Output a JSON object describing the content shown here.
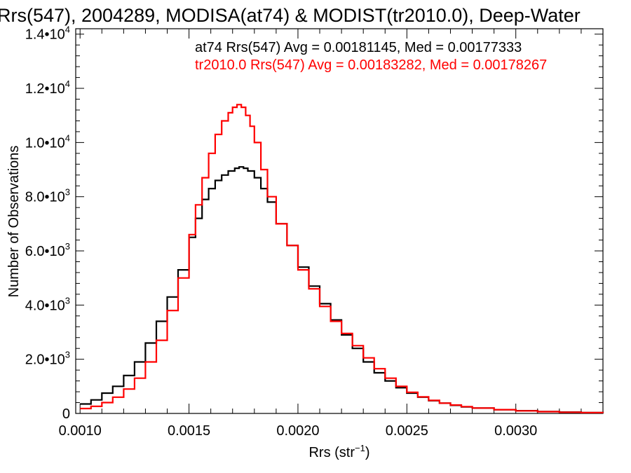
{
  "chart_data": {
    "type": "line",
    "title": "Rrs(547), 2004289, MODISA(at74) & MODIST(tr2010.0), Deep-Water",
    "xlabel": "Rrs (str",
    "xlabel_sup": "−1",
    "xlabel_close": ")",
    "ylabel": "Number of Observations",
    "xlim": [
      0.00098,
      0.0034
    ],
    "ylim": [
      0,
      14200
    ],
    "x_ticks": [
      {
        "value": 0.001,
        "label": "0.0010"
      },
      {
        "value": 0.0015,
        "label": "0.0015"
      },
      {
        "value": 0.002,
        "label": "0.0020"
      },
      {
        "value": 0.0025,
        "label": "0.0025"
      },
      {
        "value": 0.003,
        "label": "0.0030"
      }
    ],
    "y_ticks": [
      {
        "value": 0,
        "mantissa": "0",
        "exp": ""
      },
      {
        "value": 2000,
        "mantissa": "2.0•10",
        "exp": "3"
      },
      {
        "value": 4000,
        "mantissa": "4.0•10",
        "exp": "3"
      },
      {
        "value": 6000,
        "mantissa": "6.0•10",
        "exp": "3"
      },
      {
        "value": 8000,
        "mantissa": "8.0•10",
        "exp": "3"
      },
      {
        "value": 10000,
        "mantissa": "1.0•10",
        "exp": "4"
      },
      {
        "value": 12000,
        "mantissa": "1.2•10",
        "exp": "4"
      },
      {
        "value": 14000,
        "mantissa": "1.4•10",
        "exp": "4"
      }
    ],
    "annotations": [
      {
        "text": "at74 Rrs(547) Avg = 0.00181145, Med = 0.00177333",
        "color": "#000000"
      },
      {
        "text": "tr2010.0 Rrs(547) Avg = 0.00183282, Med = 0.00178267",
        "color": "#ff0000"
      }
    ],
    "series": [
      {
        "color": "#000000",
        "x": [
          0.001,
          0.00105,
          0.0011,
          0.00115,
          0.0012,
          0.00125,
          0.0013,
          0.00135,
          0.0014,
          0.00145,
          0.0015,
          0.00153,
          0.00156,
          0.00159,
          0.00162,
          0.00165,
          0.00168,
          0.00171,
          0.00173,
          0.00175,
          0.00177,
          0.0018,
          0.00183,
          0.00186,
          0.0019,
          0.00195,
          0.002,
          0.00205,
          0.0021,
          0.00215,
          0.0022,
          0.00225,
          0.0023,
          0.00235,
          0.0024,
          0.00245,
          0.0025,
          0.00255,
          0.0026,
          0.00265,
          0.0027,
          0.00275,
          0.0028,
          0.0029,
          0.003,
          0.0031,
          0.0032,
          0.0033,
          0.0034
        ],
        "y": [
          350,
          500,
          750,
          1000,
          1400,
          1900,
          2600,
          3400,
          4300,
          5300,
          6500,
          7200,
          7900,
          8300,
          8600,
          8800,
          8950,
          9050,
          9100,
          9050,
          8950,
          8700,
          8300,
          7800,
          7000,
          6200,
          5400,
          4700,
          4050,
          3450,
          2900,
          2400,
          1900,
          1500,
          1200,
          950,
          750,
          600,
          470,
          380,
          300,
          240,
          200,
          140,
          100,
          70,
          50,
          30,
          20
        ]
      },
      {
        "color": "#ff0000",
        "x": [
          0.001,
          0.00105,
          0.0011,
          0.00115,
          0.0012,
          0.00125,
          0.0013,
          0.00135,
          0.0014,
          0.00145,
          0.0015,
          0.00153,
          0.00156,
          0.00159,
          0.00162,
          0.00165,
          0.00168,
          0.0017,
          0.00172,
          0.00174,
          0.00176,
          0.00178,
          0.0018,
          0.00183,
          0.00186,
          0.0019,
          0.00195,
          0.002,
          0.00205,
          0.0021,
          0.00215,
          0.0022,
          0.00225,
          0.0023,
          0.00235,
          0.0024,
          0.00245,
          0.0025,
          0.00255,
          0.0026,
          0.00265,
          0.0027,
          0.00275,
          0.0028,
          0.0029,
          0.003,
          0.0031,
          0.0032,
          0.0033,
          0.0034
        ],
        "y": [
          180,
          260,
          400,
          600,
          900,
          1300,
          1900,
          2700,
          3800,
          5000,
          6600,
          7700,
          8700,
          9600,
          10300,
          10800,
          11100,
          11300,
          11400,
          11300,
          11000,
          10600,
          10000,
          9000,
          8000,
          7000,
          6200,
          5300,
          4600,
          3950,
          3400,
          2950,
          2500,
          2050,
          1650,
          1300,
          1000,
          780,
          610,
          480,
          380,
          310,
          250,
          200,
          140,
          95,
          65,
          45,
          30,
          20
        ]
      }
    ]
  }
}
